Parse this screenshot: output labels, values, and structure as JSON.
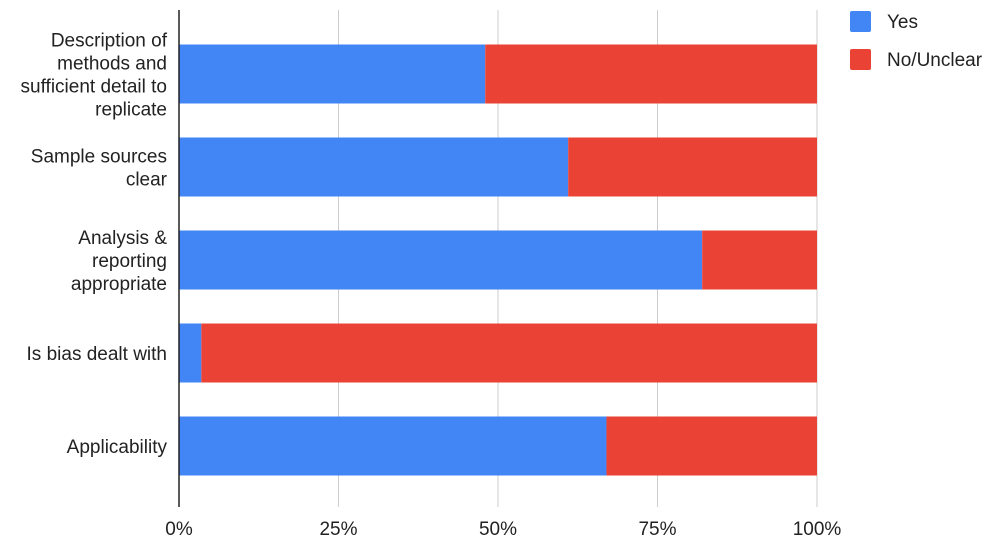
{
  "chart_data": {
    "type": "bar",
    "orientation": "horizontal",
    "stacked": "percent",
    "categories": [
      [
        "Description of",
        "methods and",
        "sufficient detail to",
        "replicate"
      ],
      [
        "Sample sources",
        "clear"
      ],
      [
        "Analysis &",
        "reporting",
        "appropriate"
      ],
      [
        "Is bias dealt with"
      ],
      [
        "Applicability"
      ]
    ],
    "series": [
      {
        "name": "Yes",
        "color": "#4285f4",
        "values": [
          48,
          61,
          82,
          3.5,
          67
        ]
      },
      {
        "name": "No/Unclear",
        "color": "#ea4335",
        "values": [
          52,
          39,
          18,
          96.5,
          33
        ]
      }
    ],
    "x_ticks": [
      "0%",
      "25%",
      "50%",
      "75%",
      "100%"
    ],
    "xlim": [
      0,
      100
    ],
    "grid": true,
    "legend_position": "top-right",
    "title": "",
    "xlabel": "",
    "ylabel": ""
  }
}
